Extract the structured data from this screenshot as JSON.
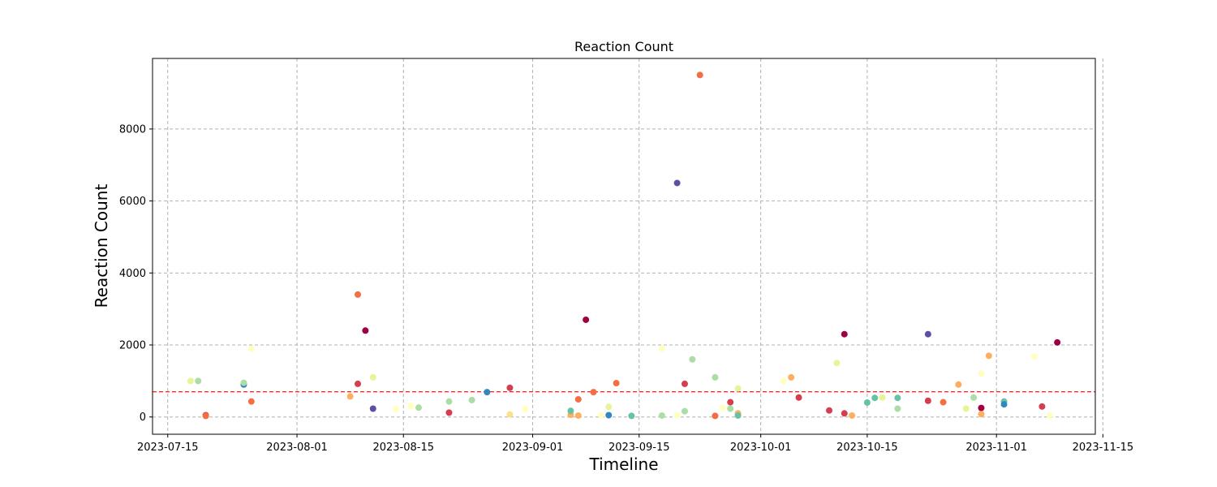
{
  "chart_data": {
    "type": "scatter",
    "title": "Reaction Count",
    "xlabel": "Timeline",
    "ylabel": "Reaction Count",
    "xlim": [
      "2023-07-13",
      "2023-11-14"
    ],
    "ylim": [
      -480,
      9960
    ],
    "x_ticks": [
      "2023-07-15",
      "2023-08-01",
      "2023-08-15",
      "2023-09-01",
      "2023-09-15",
      "2023-10-01",
      "2023-10-15",
      "2023-11-01",
      "2023-11-15"
    ],
    "y_ticks": [
      0,
      2000,
      4000,
      6000,
      8000
    ],
    "grid": true,
    "reference_line": {
      "y": 700,
      "color": "#ff0000",
      "style": "dashed"
    },
    "points": [
      {
        "date": "2023-07-18",
        "value": 1000,
        "color": "#e6f598"
      },
      {
        "date": "2023-07-19",
        "value": 1000,
        "color": "#abdda4"
      },
      {
        "date": "2023-07-20",
        "value": 50,
        "color": "#d53e4f"
      },
      {
        "date": "2023-07-20",
        "value": 30,
        "color": "#f46d43"
      },
      {
        "date": "2023-07-25",
        "value": 900,
        "color": "#3288bd"
      },
      {
        "date": "2023-07-25",
        "value": 950,
        "color": "#abdda4"
      },
      {
        "date": "2023-07-26",
        "value": 1900,
        "color": "#ffffbf"
      },
      {
        "date": "2023-07-26",
        "value": 430,
        "color": "#f46d43"
      },
      {
        "date": "2023-08-08",
        "value": 570,
        "color": "#fdae61"
      },
      {
        "date": "2023-08-09",
        "value": 3400,
        "color": "#f46d43"
      },
      {
        "date": "2023-08-09",
        "value": 920,
        "color": "#d53e4f"
      },
      {
        "date": "2023-08-10",
        "value": 2400,
        "color": "#9e0142"
      },
      {
        "date": "2023-08-11",
        "value": 1100,
        "color": "#e6f598"
      },
      {
        "date": "2023-08-11",
        "value": 230,
        "color": "#5e4fa2"
      },
      {
        "date": "2023-08-14",
        "value": 220,
        "color": "#ffffbf"
      },
      {
        "date": "2023-08-16",
        "value": 300,
        "color": "#ffffbf"
      },
      {
        "date": "2023-08-17",
        "value": 260,
        "color": "#abdda4"
      },
      {
        "date": "2023-08-21",
        "value": 120,
        "color": "#d53e4f"
      },
      {
        "date": "2023-08-21",
        "value": 430,
        "color": "#abdda4"
      },
      {
        "date": "2023-08-24",
        "value": 470,
        "color": "#abdda4"
      },
      {
        "date": "2023-08-26",
        "value": 690,
        "color": "#3288bd"
      },
      {
        "date": "2023-08-29",
        "value": 810,
        "color": "#d53e4f"
      },
      {
        "date": "2023-08-29",
        "value": 70,
        "color": "#fee08b"
      },
      {
        "date": "2023-08-31",
        "value": 220,
        "color": "#ffffbf"
      },
      {
        "date": "2023-09-06",
        "value": 60,
        "color": "#fdae61"
      },
      {
        "date": "2023-09-06",
        "value": 170,
        "color": "#66c2a5"
      },
      {
        "date": "2023-09-07",
        "value": 490,
        "color": "#f46d43"
      },
      {
        "date": "2023-09-07",
        "value": 40,
        "color": "#fdae61"
      },
      {
        "date": "2023-09-08",
        "value": 2700,
        "color": "#9e0142"
      },
      {
        "date": "2023-09-09",
        "value": 690,
        "color": "#f46d43"
      },
      {
        "date": "2023-09-10",
        "value": 50,
        "color": "#ffffbf"
      },
      {
        "date": "2023-09-11",
        "value": 280,
        "color": "#e6f598"
      },
      {
        "date": "2023-09-11",
        "value": 50,
        "color": "#3288bd"
      },
      {
        "date": "2023-09-12",
        "value": 940,
        "color": "#f46d43"
      },
      {
        "date": "2023-09-14",
        "value": 30,
        "color": "#66c2a5"
      },
      {
        "date": "2023-09-18",
        "value": 1900,
        "color": "#ffffbf"
      },
      {
        "date": "2023-09-18",
        "value": 40,
        "color": "#abdda4"
      },
      {
        "date": "2023-09-20",
        "value": 6500,
        "color": "#5e4fa2"
      },
      {
        "date": "2023-09-20",
        "value": 50,
        "color": "#ffffbf"
      },
      {
        "date": "2023-09-21",
        "value": 920,
        "color": "#d53e4f"
      },
      {
        "date": "2023-09-21",
        "value": 160,
        "color": "#abdda4"
      },
      {
        "date": "2023-09-22",
        "value": 1600,
        "color": "#abdda4"
      },
      {
        "date": "2023-09-23",
        "value": 9500,
        "color": "#f46d43"
      },
      {
        "date": "2023-09-25",
        "value": 30,
        "color": "#f46d43"
      },
      {
        "date": "2023-09-25",
        "value": 1100,
        "color": "#abdda4"
      },
      {
        "date": "2023-09-26",
        "value": 250,
        "color": "#ffffbf"
      },
      {
        "date": "2023-09-27",
        "value": 230,
        "color": "#abdda4"
      },
      {
        "date": "2023-09-27",
        "value": 410,
        "color": "#d53e4f"
      },
      {
        "date": "2023-09-28",
        "value": 790,
        "color": "#e6f598"
      },
      {
        "date": "2023-09-28",
        "value": 100,
        "color": "#fdae61"
      },
      {
        "date": "2023-09-28",
        "value": 40,
        "color": "#66c2a5"
      },
      {
        "date": "2023-10-04",
        "value": 1000,
        "color": "#ffffbf"
      },
      {
        "date": "2023-10-05",
        "value": 1100,
        "color": "#fdae61"
      },
      {
        "date": "2023-10-06",
        "value": 540,
        "color": "#d53e4f"
      },
      {
        "date": "2023-10-10",
        "value": 180,
        "color": "#d53e4f"
      },
      {
        "date": "2023-10-11",
        "value": 1500,
        "color": "#e6f598"
      },
      {
        "date": "2023-10-12",
        "value": 2300,
        "color": "#9e0142"
      },
      {
        "date": "2023-10-12",
        "value": 100,
        "color": "#d53e4f"
      },
      {
        "date": "2023-10-13",
        "value": 40,
        "color": "#fdae61"
      },
      {
        "date": "2023-10-15",
        "value": 400,
        "color": "#66c2a5"
      },
      {
        "date": "2023-10-16",
        "value": 530,
        "color": "#66c2a5"
      },
      {
        "date": "2023-10-17",
        "value": 540,
        "color": "#e6f598"
      },
      {
        "date": "2023-10-19",
        "value": 230,
        "color": "#abdda4"
      },
      {
        "date": "2023-10-19",
        "value": 530,
        "color": "#66c2a5"
      },
      {
        "date": "2023-10-23",
        "value": 2300,
        "color": "#5e4fa2"
      },
      {
        "date": "2023-10-23",
        "value": 450,
        "color": "#d53e4f"
      },
      {
        "date": "2023-10-25",
        "value": 410,
        "color": "#f46d43"
      },
      {
        "date": "2023-10-27",
        "value": 900,
        "color": "#fdae61"
      },
      {
        "date": "2023-10-28",
        "value": 230,
        "color": "#e6f598"
      },
      {
        "date": "2023-10-29",
        "value": 540,
        "color": "#abdda4"
      },
      {
        "date": "2023-10-30",
        "value": 1200,
        "color": "#ffffbf"
      },
      {
        "date": "2023-10-30",
        "value": 250,
        "color": "#9e0142"
      },
      {
        "date": "2023-10-30",
        "value": 80,
        "color": "#fdae61"
      },
      {
        "date": "2023-10-31",
        "value": 1700,
        "color": "#fdae61"
      },
      {
        "date": "2023-11-02",
        "value": 430,
        "color": "#66c2a5"
      },
      {
        "date": "2023-11-02",
        "value": 350,
        "color": "#3288bd"
      },
      {
        "date": "2023-11-06",
        "value": 1680,
        "color": "#ffffbf"
      },
      {
        "date": "2023-11-07",
        "value": 290,
        "color": "#d53e4f"
      },
      {
        "date": "2023-11-08",
        "value": 40,
        "color": "#ffffbf"
      },
      {
        "date": "2023-11-09",
        "value": 2070,
        "color": "#9e0142"
      }
    ]
  }
}
